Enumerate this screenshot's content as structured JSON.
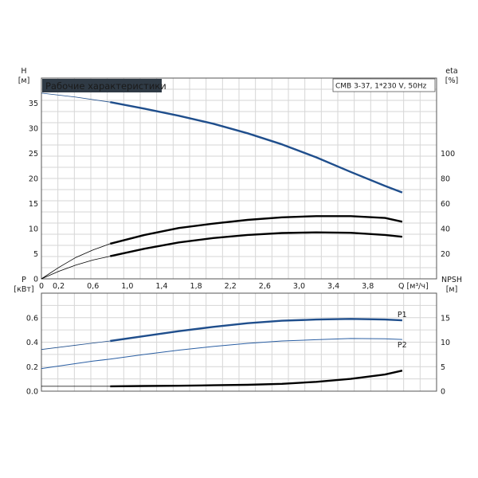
{
  "chart_data": [
    {
      "type": "line",
      "title": "Рабочие характеристики",
      "model_label": "CMB 3-37, 1*230 V, 50Hz",
      "x_label": "Q [м³/ч]",
      "xlim": [
        0,
        4.6
      ],
      "x_ticks": [
        "0",
        "0,2",
        "0,6",
        "1,0",
        "1,4",
        "1,8",
        "2,2",
        "2,6",
        "3,0",
        "3,4",
        "3,8"
      ],
      "x_tick_values": [
        0,
        0.2,
        0.6,
        1.0,
        1.4,
        1.8,
        2.2,
        2.6,
        3.0,
        3.4,
        3.8
      ],
      "y_left_label_top": "H",
      "y_left_label_unit": "[м]",
      "y_left_lim": [
        0,
        40
      ],
      "y_left_ticks": [
        "0",
        "5",
        "10",
        "15",
        "20",
        "25",
        "30",
        "35"
      ],
      "y_left_tick_values": [
        0,
        5,
        10,
        15,
        20,
        25,
        30,
        35
      ],
      "y_right_label_top": "eta",
      "y_right_label_unit": "[%]",
      "y_right_lim": [
        0,
        160
      ],
      "y_right_ticks": [
        "20",
        "40",
        "60",
        "80",
        "100"
      ],
      "y_right_tick_values": [
        20,
        40,
        60,
        80,
        100
      ],
      "grid": true,
      "series": [
        {
          "axis": "left",
          "color": "#1f4e8c",
          "x_full": [
            0,
            0.4,
            0.8
          ],
          "y_full": [
            37.0,
            36.2,
            35.2
          ],
          "x_op": [
            0.8,
            1.2,
            1.6,
            2.0,
            2.4,
            2.8,
            3.2,
            3.6,
            4.0,
            4.2
          ],
          "y_op": [
            35.2,
            33.9,
            32.5,
            30.9,
            29.0,
            26.8,
            24.2,
            21.3,
            18.5,
            17.2
          ]
        },
        {
          "axis": "right",
          "color": "#000000",
          "x_full": [
            0,
            0.2,
            0.4,
            0.6,
            0.8
          ],
          "y_full": [
            0,
            9,
            17,
            23,
            28
          ],
          "x_op": [
            0.8,
            1.2,
            1.6,
            2.0,
            2.4,
            2.8,
            3.2,
            3.6,
            4.0,
            4.2
          ],
          "y_op": [
            28,
            35,
            40.5,
            44,
            47,
            49,
            50,
            50,
            48.5,
            45.5
          ]
        },
        {
          "axis": "right",
          "color": "#000000",
          "x_full": [
            0,
            0.2,
            0.4,
            0.6,
            0.8
          ],
          "y_full": [
            0,
            6,
            11,
            15,
            18
          ],
          "x_op": [
            0.8,
            1.2,
            1.6,
            2.0,
            2.4,
            2.8,
            3.2,
            3.6,
            4.0,
            4.2
          ],
          "y_op": [
            18,
            24,
            29,
            32.5,
            35,
            36.5,
            37,
            36.7,
            35,
            33.5
          ]
        }
      ]
    },
    {
      "type": "line",
      "x_label": "",
      "xlim": [
        0,
        4.6
      ],
      "y_left_label_top": "P",
      "y_left_label_unit": "[кВт]",
      "y_left_lim": [
        0,
        0.8
      ],
      "y_left_ticks": [
        "0.0",
        "0.2",
        "0.4",
        "0.6"
      ],
      "y_left_tick_values": [
        0,
        0.2,
        0.4,
        0.6
      ],
      "y_right_label_top": "NPSH",
      "y_right_label_unit": "[м]",
      "y_right_lim": [
        0,
        20
      ],
      "y_right_ticks": [
        "0",
        "5",
        "10",
        "15"
      ],
      "y_right_tick_values": [
        0,
        5,
        10,
        15
      ],
      "grid": true,
      "series": [
        {
          "name": "P1",
          "axis": "left",
          "color": "#1f4e8c",
          "x_full": [
            0,
            0.4,
            0.8
          ],
          "y_full": [
            0.34,
            0.375,
            0.41
          ],
          "x_op": [
            0.8,
            1.2,
            1.6,
            2.0,
            2.4,
            2.8,
            3.2,
            3.6,
            4.0,
            4.2
          ],
          "y_op": [
            0.41,
            0.45,
            0.49,
            0.525,
            0.555,
            0.575,
            0.585,
            0.59,
            0.585,
            0.578
          ]
        },
        {
          "name": "P2",
          "axis": "left",
          "color": "#2b5fa3",
          "x_full": [
            0,
            0.2,
            0.4,
            0.6,
            0.8,
            1.2,
            1.6,
            2.0,
            2.4,
            2.8,
            3.2,
            3.6,
            4.0,
            4.2
          ],
          "y_full": [
            0.185,
            0.205,
            0.225,
            0.245,
            0.262,
            0.3,
            0.335,
            0.365,
            0.39,
            0.41,
            0.42,
            0.43,
            0.428,
            0.422
          ],
          "x_op": [],
          "y_op": []
        },
        {
          "axis": "right",
          "color": "#000000",
          "x_full": [
            0,
            0.4,
            0.8
          ],
          "y_full": [
            1.0,
            1.0,
            1.0
          ],
          "x_op": [
            0.8,
            1.2,
            1.6,
            2.0,
            2.4,
            2.8,
            3.2,
            3.6,
            4.0,
            4.2
          ],
          "y_op": [
            1.0,
            1.05,
            1.1,
            1.2,
            1.3,
            1.5,
            1.9,
            2.5,
            3.4,
            4.2
          ]
        }
      ]
    }
  ]
}
